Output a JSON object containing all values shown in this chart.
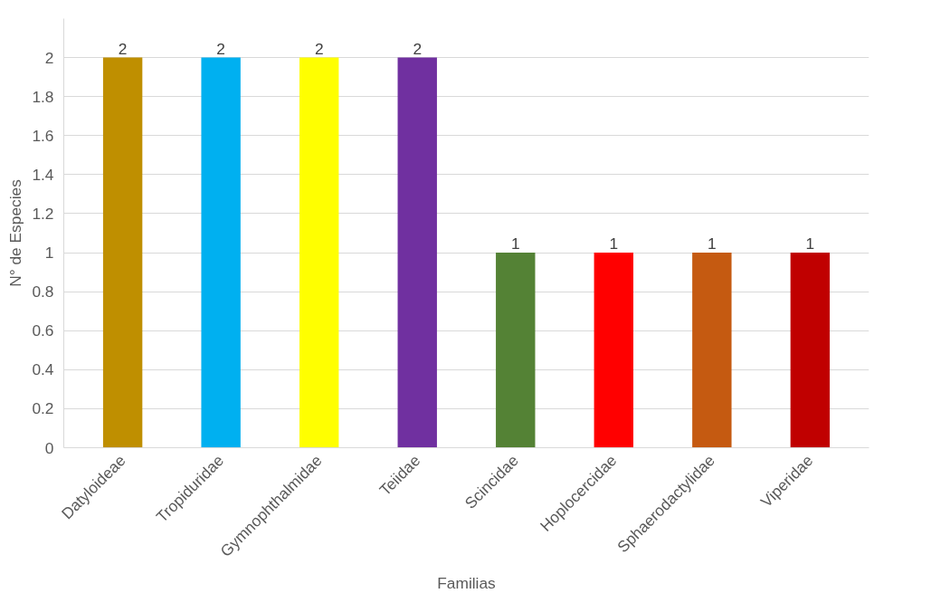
{
  "chart_data": {
    "type": "bar",
    "xlabel": "Familias",
    "ylabel": "N° de Especies",
    "categories": [
      "Datyloideae",
      "Tropiduridae",
      "Gymnophthalmidae",
      "Teiidae",
      "Scincidae",
      "Hoplocercidae",
      "Sphaerodactylidae",
      "Viperidae"
    ],
    "values": [
      2,
      2,
      2,
      2,
      1,
      1,
      1,
      1
    ],
    "colors": [
      "#bf8f00",
      "#00b0f0",
      "#ffff00",
      "#7030a0",
      "#548235",
      "#ff0000",
      "#c55a11",
      "#c00000"
    ],
    "ylim": [
      0,
      2.2
    ],
    "yticks": [
      0,
      0.2,
      0.4,
      0.6,
      0.8,
      1,
      1.2,
      1.4,
      1.6,
      1.8,
      2
    ],
    "grid": "y",
    "data_labels": true
  }
}
